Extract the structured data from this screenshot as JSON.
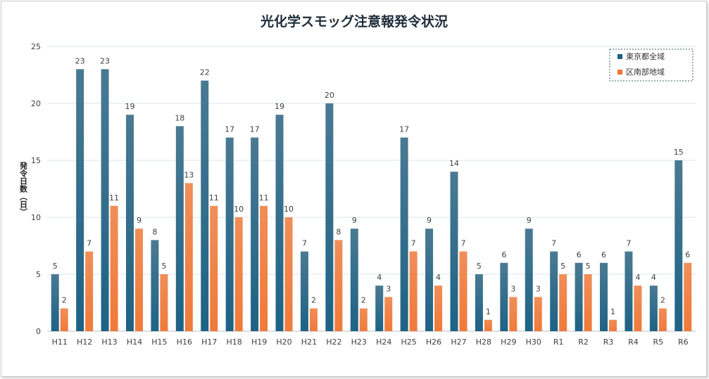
{
  "chart_data": {
    "type": "bar",
    "title": "光化学スモッグ注意報発令状況",
    "ylabel": "発令日数（日）",
    "xlabel": "",
    "ylim": [
      0,
      25
    ],
    "yticks": [
      0,
      5,
      10,
      15,
      20,
      25
    ],
    "grid": true,
    "legend_position": "top-right",
    "categories": [
      "H11",
      "H12",
      "H13",
      "H14",
      "H15",
      "H16",
      "H17",
      "H18",
      "H19",
      "H20",
      "H21",
      "H22",
      "H23",
      "H24",
      "H25",
      "H26",
      "H27",
      "H28",
      "H29",
      "H30",
      "R1",
      "R2",
      "R3",
      "R4",
      "R5",
      "R6"
    ],
    "series": [
      {
        "name": "東京都全域",
        "color": "#1d6285",
        "color_top": "#4a7a93",
        "values": [
          5,
          23,
          23,
          19,
          8,
          18,
          22,
          17,
          17,
          19,
          7,
          20,
          9,
          4,
          17,
          9,
          14,
          5,
          6,
          9,
          7,
          6,
          6,
          7,
          4,
          15
        ]
      },
      {
        "name": "区南部地域",
        "color": "#f07a3a",
        "color_top": "#f08e58",
        "values": [
          2,
          7,
          11,
          9,
          5,
          13,
          11,
          10,
          11,
          10,
          2,
          8,
          2,
          3,
          7,
          4,
          7,
          1,
          3,
          3,
          5,
          5,
          1,
          4,
          2,
          6
        ]
      }
    ]
  }
}
